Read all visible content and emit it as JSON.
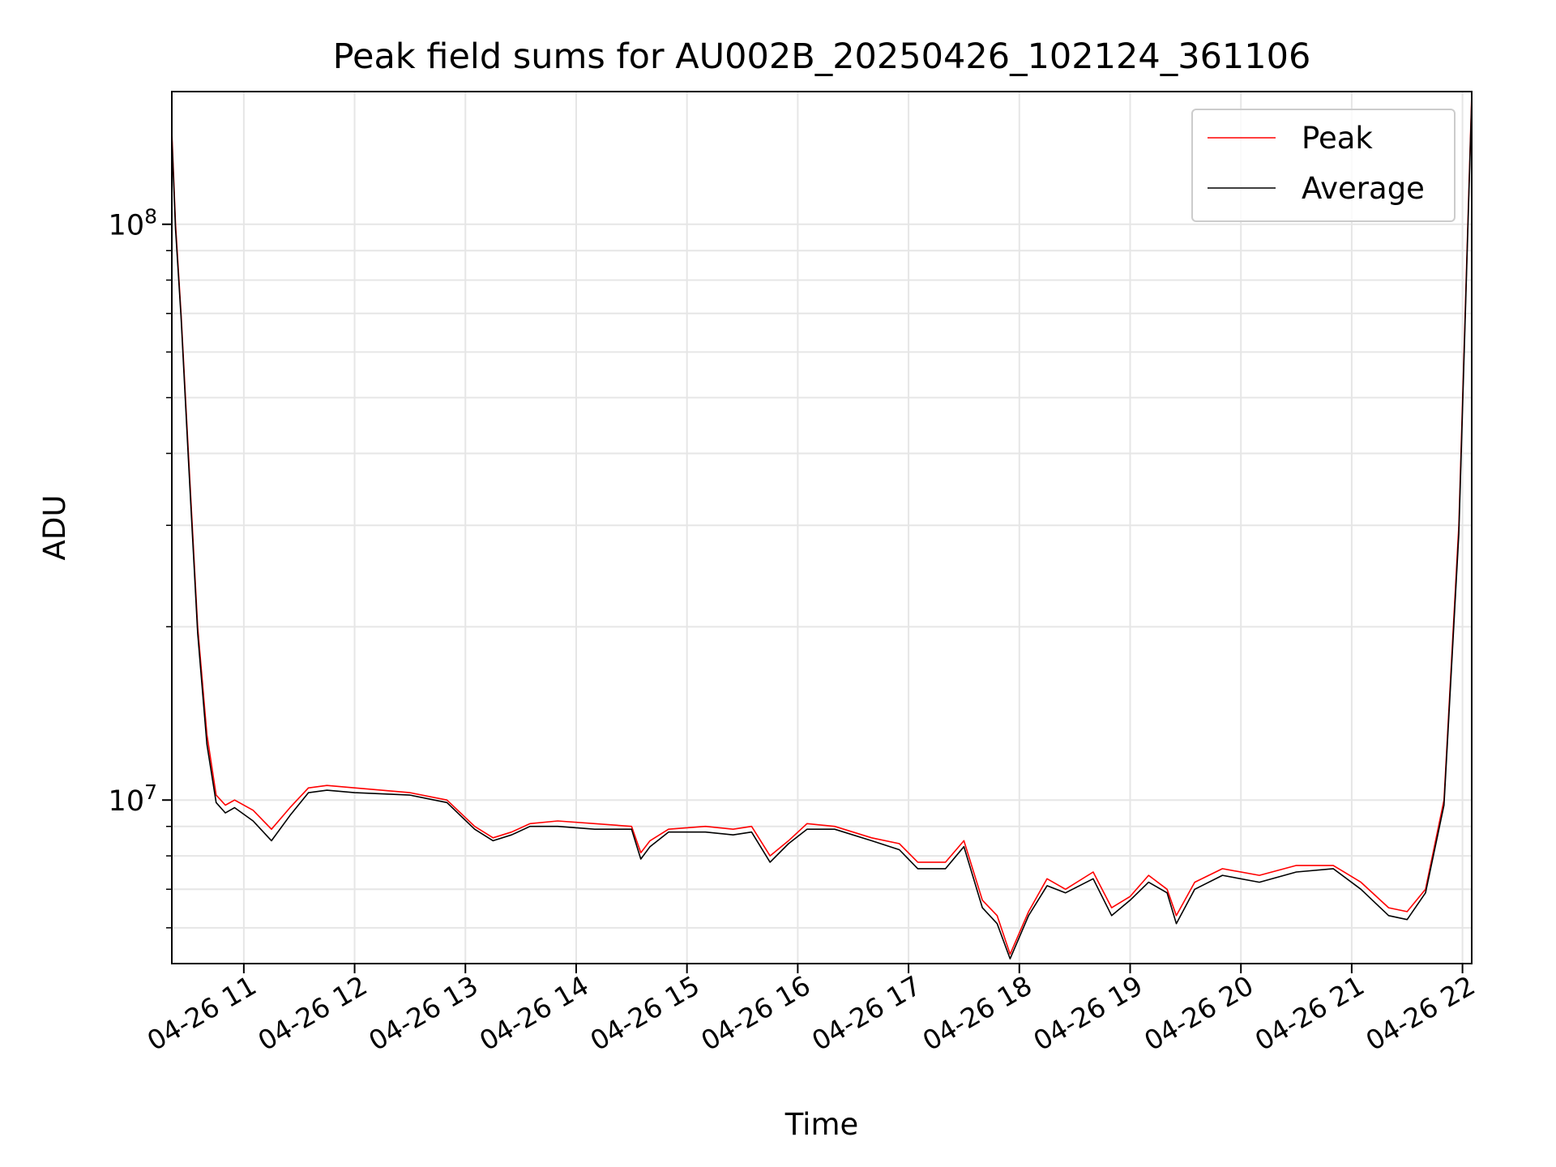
{
  "chart_data": {
    "type": "line",
    "title": "Peak field sums for AU002B_20250426_102124_361106",
    "xlabel": "Time",
    "ylabel": "ADU",
    "yscale": "log",
    "grid": true,
    "legend_position": "top-right",
    "xlim": [
      "2025-04-26 10:21",
      "2025-04-26 22:05"
    ],
    "ylim": [
      5200000,
      170000000
    ],
    "x_ticks": [
      "04-26 11",
      "04-26 12",
      "04-26 13",
      "04-26 14",
      "04-26 15",
      "04-26 16",
      "04-26 17",
      "04-26 18",
      "04-26 19",
      "04-26 20",
      "04-26 21",
      "04-26 22"
    ],
    "x_tick_times": [
      "2025-04-26 11:00",
      "2025-04-26 12:00",
      "2025-04-26 13:00",
      "2025-04-26 14:00",
      "2025-04-26 15:00",
      "2025-04-26 16:00",
      "2025-04-26 17:00",
      "2025-04-26 18:00",
      "2025-04-26 19:00",
      "2025-04-26 20:00",
      "2025-04-26 21:00",
      "2025-04-26 22:00"
    ],
    "y_ticks": [
      {
        "value": 10000000,
        "base": "10",
        "exp": "7"
      },
      {
        "value": 100000000,
        "base": "10",
        "exp": "8"
      }
    ],
    "series": [
      {
        "name": "Peak",
        "color": "#ff0000",
        "x": [
          "2025-04-26 10:21",
          "2025-04-26 10:23",
          "2025-04-26 10:26",
          "2025-04-26 10:30",
          "2025-04-26 10:35",
          "2025-04-26 10:40",
          "2025-04-26 10:45",
          "2025-04-26 10:50",
          "2025-04-26 10:55",
          "2025-04-26 11:05",
          "2025-04-26 11:15",
          "2025-04-26 11:25",
          "2025-04-26 11:35",
          "2025-04-26 11:45",
          "2025-04-26 12:00",
          "2025-04-26 12:30",
          "2025-04-26 12:50",
          "2025-04-26 13:05",
          "2025-04-26 13:15",
          "2025-04-26 13:25",
          "2025-04-26 13:35",
          "2025-04-26 13:50",
          "2025-04-26 14:10",
          "2025-04-26 14:30",
          "2025-04-26 14:35",
          "2025-04-26 14:40",
          "2025-04-26 14:50",
          "2025-04-26 15:10",
          "2025-04-26 15:25",
          "2025-04-26 15:35",
          "2025-04-26 15:45",
          "2025-04-26 15:55",
          "2025-04-26 16:05",
          "2025-04-26 16:20",
          "2025-04-26 16:40",
          "2025-04-26 16:55",
          "2025-04-26 17:05",
          "2025-04-26 17:20",
          "2025-04-26 17:30",
          "2025-04-26 17:40",
          "2025-04-26 17:48",
          "2025-04-26 17:55",
          "2025-04-26 18:05",
          "2025-04-26 18:15",
          "2025-04-26 18:25",
          "2025-04-26 18:40",
          "2025-04-26 18:50",
          "2025-04-26 19:00",
          "2025-04-26 19:10",
          "2025-04-26 19:20",
          "2025-04-26 19:25",
          "2025-04-26 19:35",
          "2025-04-26 19:50",
          "2025-04-26 20:10",
          "2025-04-26 20:30",
          "2025-04-26 20:50",
          "2025-04-26 21:05",
          "2025-04-26 21:20",
          "2025-04-26 21:30",
          "2025-04-26 21:40",
          "2025-04-26 21:50",
          "2025-04-26 21:58",
          "2025-04-26 22:05"
        ],
        "values": [
          145000000,
          100000000,
          70000000,
          40000000,
          20000000,
          13000000,
          10200000,
          9800000,
          10000000,
          9600000,
          8900000,
          9700000,
          10500000,
          10600000,
          10500000,
          10300000,
          10000000,
          9000000,
          8600000,
          8800000,
          9100000,
          9200000,
          9100000,
          9000000,
          8100000,
          8500000,
          8900000,
          9000000,
          8900000,
          9000000,
          8000000,
          8500000,
          9100000,
          9000000,
          8600000,
          8400000,
          7800000,
          7800000,
          8500000,
          6700000,
          6300000,
          5400000,
          6400000,
          7300000,
          7000000,
          7500000,
          6500000,
          6800000,
          7400000,
          7000000,
          6300000,
          7200000,
          7600000,
          7400000,
          7700000,
          7700000,
          7200000,
          6500000,
          6400000,
          7000000,
          10000000,
          30000000,
          168000000
        ]
      },
      {
        "name": "Average",
        "color": "#000000",
        "x": [
          "2025-04-26 10:21",
          "2025-04-26 10:23",
          "2025-04-26 10:26",
          "2025-04-26 10:30",
          "2025-04-26 10:35",
          "2025-04-26 10:40",
          "2025-04-26 10:45",
          "2025-04-26 10:50",
          "2025-04-26 10:55",
          "2025-04-26 11:05",
          "2025-04-26 11:15",
          "2025-04-26 11:25",
          "2025-04-26 11:35",
          "2025-04-26 11:45",
          "2025-04-26 12:00",
          "2025-04-26 12:30",
          "2025-04-26 12:50",
          "2025-04-26 13:05",
          "2025-04-26 13:15",
          "2025-04-26 13:25",
          "2025-04-26 13:35",
          "2025-04-26 13:50",
          "2025-04-26 14:10",
          "2025-04-26 14:30",
          "2025-04-26 14:35",
          "2025-04-26 14:40",
          "2025-04-26 14:50",
          "2025-04-26 15:10",
          "2025-04-26 15:25",
          "2025-04-26 15:35",
          "2025-04-26 15:45",
          "2025-04-26 15:55",
          "2025-04-26 16:05",
          "2025-04-26 16:20",
          "2025-04-26 16:40",
          "2025-04-26 16:55",
          "2025-04-26 17:05",
          "2025-04-26 17:20",
          "2025-04-26 17:30",
          "2025-04-26 17:40",
          "2025-04-26 17:48",
          "2025-04-26 17:55",
          "2025-04-26 18:05",
          "2025-04-26 18:15",
          "2025-04-26 18:25",
          "2025-04-26 18:40",
          "2025-04-26 18:50",
          "2025-04-26 19:00",
          "2025-04-26 19:10",
          "2025-04-26 19:20",
          "2025-04-26 19:25",
          "2025-04-26 19:35",
          "2025-04-26 19:50",
          "2025-04-26 20:10",
          "2025-04-26 20:30",
          "2025-04-26 20:50",
          "2025-04-26 21:05",
          "2025-04-26 21:20",
          "2025-04-26 21:30",
          "2025-04-26 21:40",
          "2025-04-26 21:50",
          "2025-04-26 21:58",
          "2025-04-26 22:05"
        ],
        "values": [
          142000000,
          98000000,
          69000000,
          39000000,
          19500000,
          12500000,
          9900000,
          9500000,
          9700000,
          9200000,
          8500000,
          9400000,
          10300000,
          10400000,
          10300000,
          10200000,
          9900000,
          8900000,
          8500000,
          8700000,
          9000000,
          9000000,
          8900000,
          8900000,
          7900000,
          8300000,
          8800000,
          8800000,
          8700000,
          8800000,
          7800000,
          8400000,
          8900000,
          8900000,
          8500000,
          8200000,
          7600000,
          7600000,
          8300000,
          6500000,
          6100000,
          5300000,
          6300000,
          7100000,
          6900000,
          7300000,
          6300000,
          6700000,
          7200000,
          6900000,
          6100000,
          7000000,
          7400000,
          7200000,
          7500000,
          7600000,
          7000000,
          6300000,
          6200000,
          6900000,
          9800000,
          29000000,
          165000000
        ]
      }
    ]
  }
}
